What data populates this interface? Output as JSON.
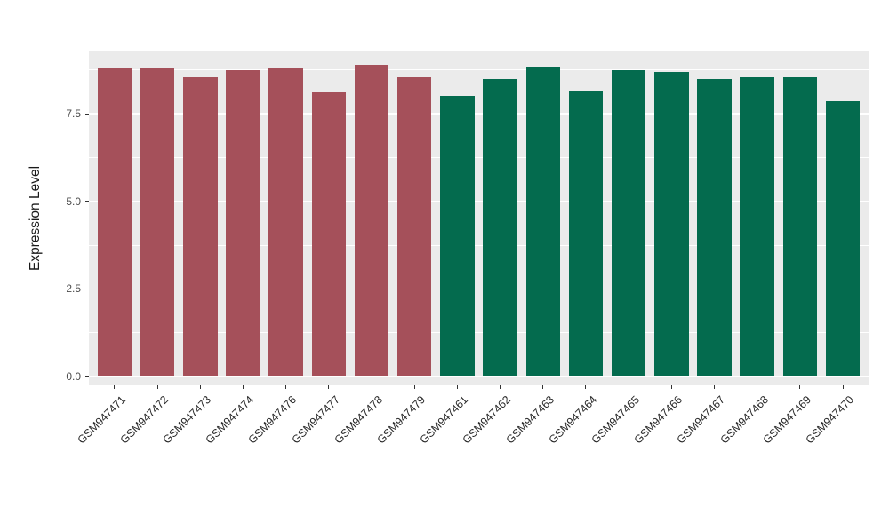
{
  "chart_data": {
    "type": "bar",
    "title": "",
    "xlabel": "",
    "ylabel": "Expression Level",
    "categories": [
      "GSM947471",
      "GSM947472",
      "GSM947473",
      "GSM947474",
      "GSM947476",
      "GSM947477",
      "GSM947478",
      "GSM947479",
      "GSM947461",
      "GSM947462",
      "GSM947463",
      "GSM947464",
      "GSM947465",
      "GSM947466",
      "GSM947467",
      "GSM947468",
      "GSM947469",
      "GSM947470"
    ],
    "values": [
      8.8,
      8.8,
      8.55,
      8.75,
      8.8,
      8.1,
      8.9,
      8.55,
      8.0,
      8.5,
      8.85,
      8.15,
      8.75,
      8.7,
      8.5,
      8.55,
      8.55,
      7.85
    ],
    "bar_colors": [
      "#A5505A",
      "#A5505A",
      "#A5505A",
      "#A5505A",
      "#A5505A",
      "#A5505A",
      "#A5505A",
      "#A5505A",
      "#046B4E",
      "#046B4E",
      "#046B4E",
      "#046B4E",
      "#046B4E",
      "#046B4E",
      "#046B4E",
      "#046B4E",
      "#046B4E",
      "#046B4E"
    ],
    "group_colors": {
      "left_group": "#A5505A",
      "right_group": "#046B4E"
    },
    "yticks": [
      0,
      2.5,
      5,
      7.5
    ],
    "ytick_labels": [
      "0.0",
      "2.5",
      "5.0",
      "7.5"
    ],
    "minor_gridlines": [
      1.25,
      3.75,
      6.25,
      8.75
    ],
    "ylim": [
      0,
      9.3
    ],
    "panel_background": "#EBEBEB",
    "gridline_color": "#FFFFFF",
    "axis_text_color": "#4D4D4D",
    "legend": "none",
    "grid": true,
    "x_label_rotation_deg": 45
  }
}
